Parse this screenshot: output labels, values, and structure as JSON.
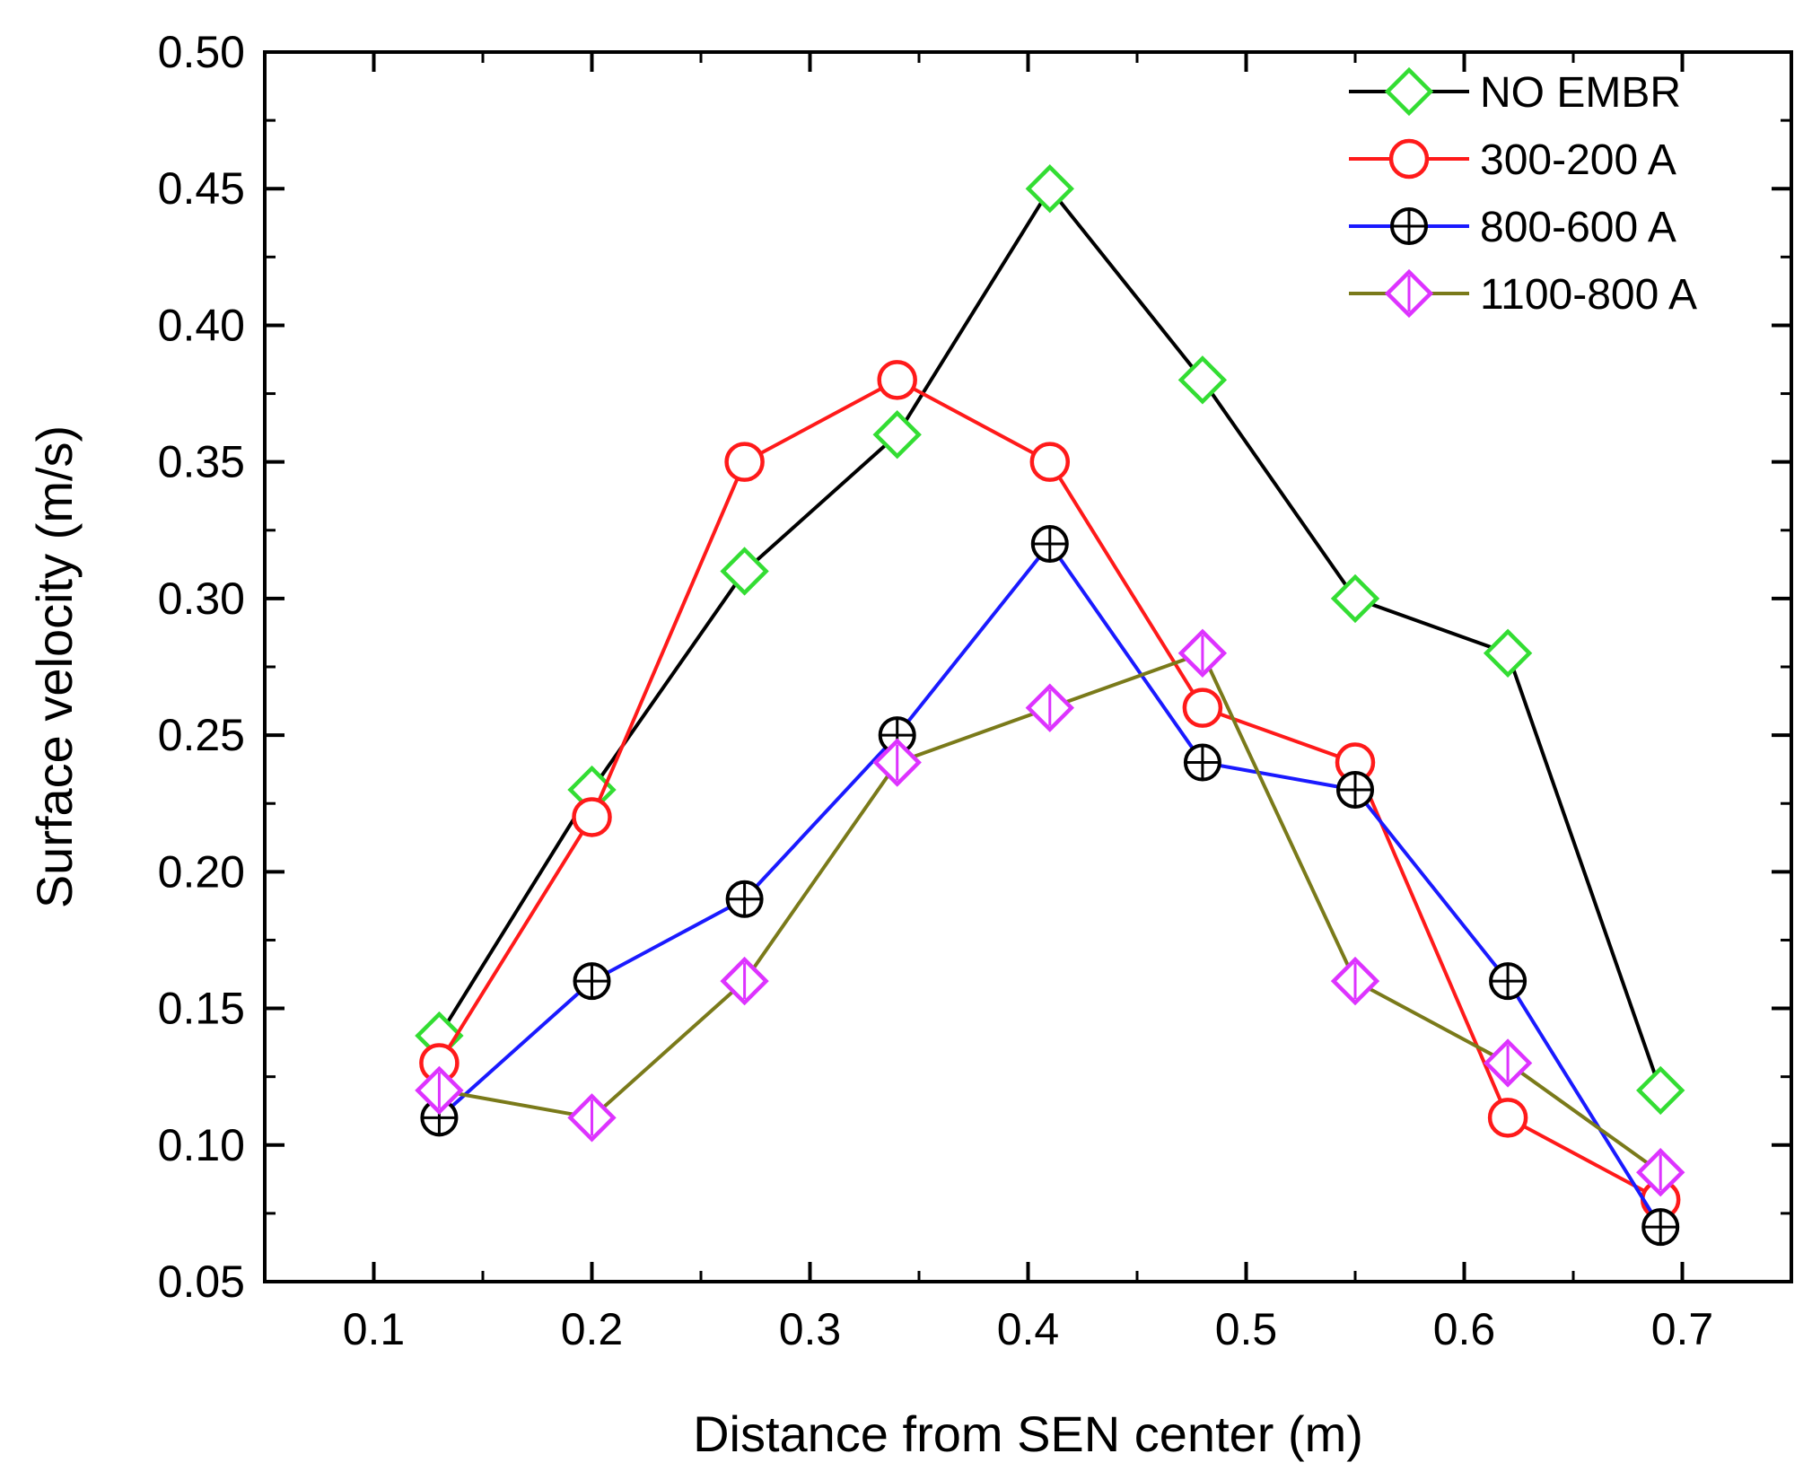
{
  "chart_data": {
    "type": "line",
    "title": "",
    "xlabel": "Distance from SEN center (m)",
    "ylabel": "Surface velocity (m/s)",
    "xlim": [
      0.05,
      0.75
    ],
    "ylim": [
      0.05,
      0.5
    ],
    "x_ticks": [
      "0.1",
      "0.2",
      "0.3",
      "0.4",
      "0.5",
      "0.6",
      "0.7"
    ],
    "y_ticks": [
      "0.05",
      "0.10",
      "0.15",
      "0.20",
      "0.25",
      "0.30",
      "0.35",
      "0.40",
      "0.45",
      "0.50"
    ],
    "grid": false,
    "legend_position": "top-right",
    "x": [
      0.13,
      0.2,
      0.27,
      0.34,
      0.41,
      0.48,
      0.55,
      0.62,
      0.69
    ],
    "series": [
      {
        "name": "NO EMBR",
        "line_color": "#000000",
        "marker": "diamond",
        "marker_color": "#33dd33",
        "values": [
          0.14,
          0.23,
          0.31,
          0.36,
          0.45,
          0.38,
          0.3,
          0.28,
          0.12
        ]
      },
      {
        "name": "300-200 A",
        "line_color": "#ff1a1a",
        "marker": "circle",
        "marker_color": "#ff1a1a",
        "values": [
          0.13,
          0.22,
          0.35,
          0.38,
          0.35,
          0.26,
          0.24,
          0.11,
          0.08
        ]
      },
      {
        "name": "800-600 A",
        "line_color": "#1a1aff",
        "marker": "circle-plus",
        "marker_color": "#000000",
        "values": [
          0.11,
          0.16,
          0.19,
          0.25,
          0.32,
          0.24,
          0.23,
          0.16,
          0.07
        ]
      },
      {
        "name": "1100-800 A",
        "line_color": "#7a7a1a",
        "marker": "diamond-line",
        "marker_color": "#dd33ff",
        "values": [
          0.12,
          0.11,
          0.16,
          0.24,
          0.26,
          0.28,
          0.16,
          0.13,
          0.09
        ]
      }
    ]
  }
}
